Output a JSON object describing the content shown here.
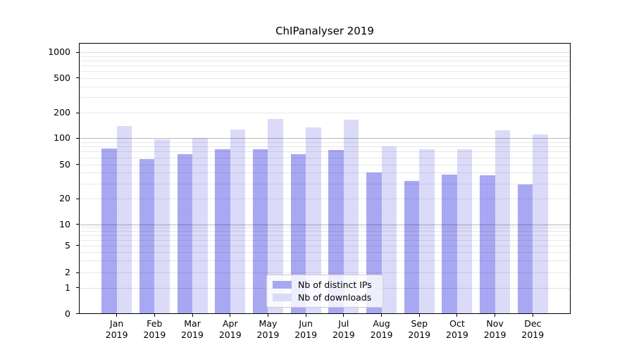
{
  "chart_data": {
    "type": "bar",
    "title": "ChIPanalyser 2019",
    "x_year": "2019",
    "categories": [
      "Jan",
      "Feb",
      "Mar",
      "Apr",
      "May",
      "Jun",
      "Jul",
      "Aug",
      "Sep",
      "Oct",
      "Nov",
      "Dec"
    ],
    "series": [
      {
        "name": "Nb of distinct IPs",
        "color": "#a8a8f2",
        "values": [
          76,
          58,
          66,
          75,
          74,
          65,
          73,
          40,
          32,
          38,
          37,
          29
        ]
      },
      {
        "name": "Nb of downloads",
        "color": "#dbdbf9",
        "values": [
          140,
          97,
          101,
          127,
          168,
          133,
          165,
          81,
          75,
          74,
          124,
          111
        ]
      }
    ],
    "y_scale": "symlog",
    "ylim": [
      0,
      1300
    ],
    "xlim": [
      -1,
      12
    ],
    "y_ticks": [
      1000,
      500,
      200,
      100,
      50,
      20,
      10,
      5,
      2,
      1,
      0
    ],
    "y_gridlines": {
      "major": [
        10,
        100
      ],
      "mid": [
        1,
        1000
      ],
      "minor": [
        2,
        3,
        4,
        5,
        6,
        7,
        8,
        9,
        20,
        30,
        40,
        50,
        60,
        70,
        80,
        90,
        200,
        300,
        400,
        500,
        600,
        700,
        800,
        900
      ]
    },
    "grid": true,
    "legend_position": "lower center inside plot",
    "legend_entries": [
      "Nb of distinct IPs",
      "Nb of downloads"
    ]
  }
}
